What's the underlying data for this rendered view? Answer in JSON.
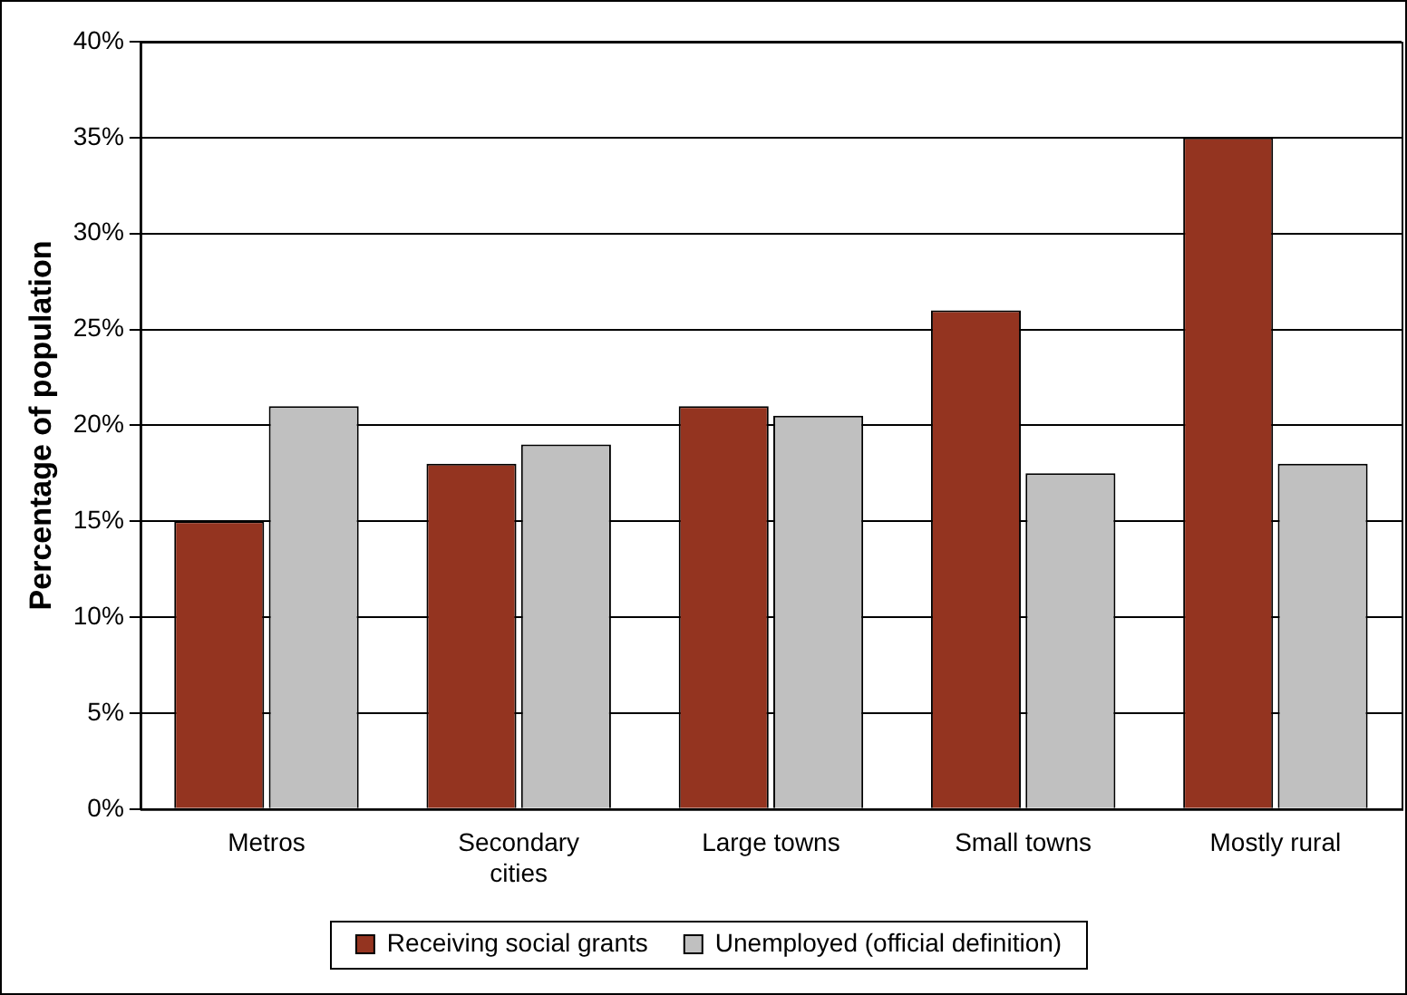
{
  "chart_data": {
    "type": "bar",
    "ylabel": "Percentage of population",
    "categories": [
      "Metros",
      "Secondary cities",
      "Large towns",
      "Small towns",
      "Mostly rural"
    ],
    "series": [
      {
        "name": "Receiving social grants",
        "color": "#943420",
        "values": [
          15,
          18,
          21,
          26,
          35
        ]
      },
      {
        "name": "Unemployed (official definition)",
        "color": "#c0c0c0",
        "values": [
          21,
          19,
          20.5,
          17.5,
          18
        ]
      }
    ],
    "ylim": [
      0,
      40
    ],
    "yticks": [
      {
        "value": 0,
        "label": "0%"
      },
      {
        "value": 5,
        "label": "5%"
      },
      {
        "value": 10,
        "label": "10%"
      },
      {
        "value": 15,
        "label": "15%"
      },
      {
        "value": 20,
        "label": "20%"
      },
      {
        "value": 25,
        "label": "25%"
      },
      {
        "value": 30,
        "label": "30%"
      },
      {
        "value": 35,
        "label": "35%"
      },
      {
        "value": 40,
        "label": "40%"
      }
    ],
    "grid": "y",
    "legend": "bottom"
  }
}
